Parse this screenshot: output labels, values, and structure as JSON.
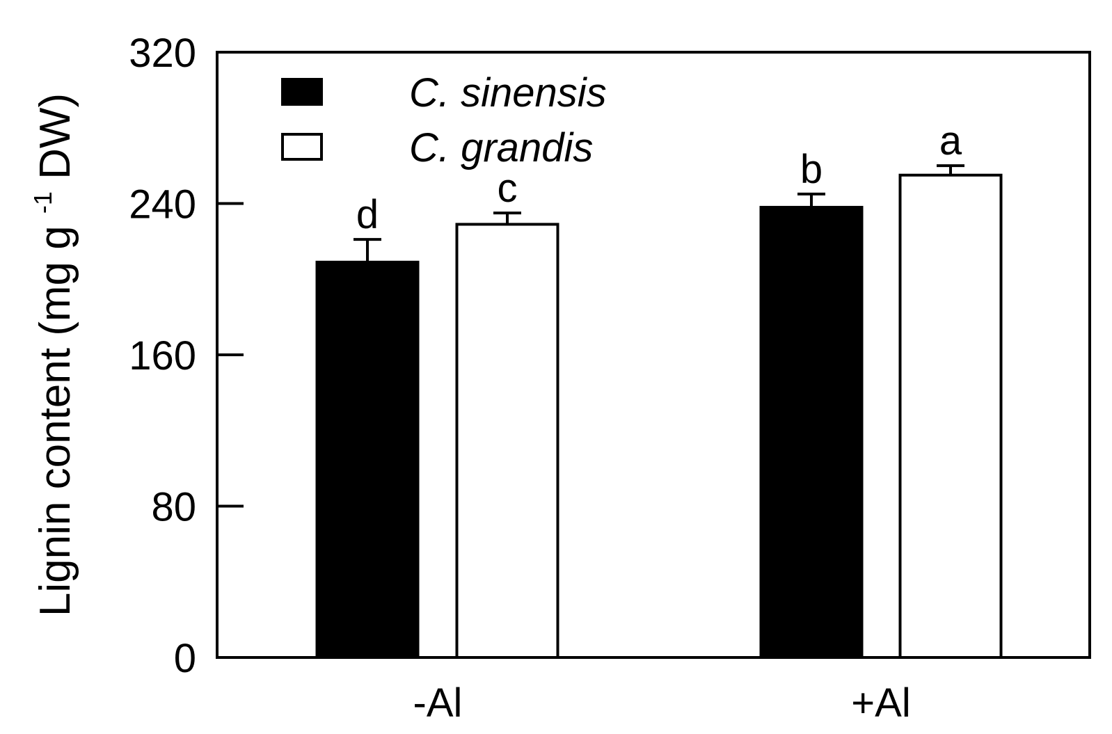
{
  "chart_data": {
    "type": "bar",
    "categories": [
      "-Al",
      "+Al"
    ],
    "series": [
      {
        "name": "C. sinensis",
        "values": [
          209,
          238
        ],
        "errors": [
          12,
          7
        ],
        "color": "#000000"
      },
      {
        "name": "C. grandis",
        "values": [
          229,
          255
        ],
        "errors": [
          6,
          5
        ],
        "color": "#ffffff"
      }
    ],
    "significance": [
      [
        "d",
        "b"
      ],
      [
        "c",
        "a"
      ]
    ],
    "ylabel": {
      "prefix": "Lignin content (mg g",
      "superscript": "-1",
      "suffix": " DW)"
    },
    "yticks": [
      0,
      80,
      160,
      240,
      320
    ],
    "ylim": [
      0,
      320
    ],
    "grid": false,
    "legend_position": "top-left"
  }
}
